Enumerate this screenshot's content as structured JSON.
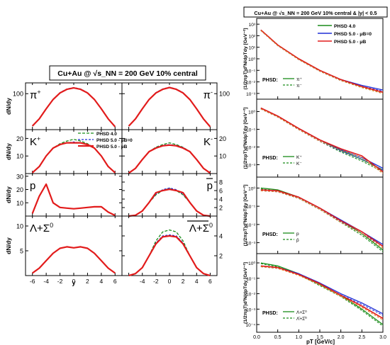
{
  "colors": {
    "green": "#1a8c1a",
    "blue": "#1f2fd6",
    "red": "#e21b1b",
    "orange": "#e8801e"
  },
  "left": {
    "title": "Cu+Au @ √s_NN = 200 GeV 10% central",
    "xlabel": "y",
    "ylabel": "dN/dy",
    "xticks": [
      "-6",
      "-4",
      "-2",
      "0",
      "2",
      "4",
      "6"
    ],
    "legend": [
      "PHSD 4.0",
      "PHSD 5.0 - μB=0",
      "PHSD 5.0 - μB"
    ],
    "panels": [
      {
        "label": "π+",
        "label_main": "π",
        "label_sup": "+",
        "side": "L",
        "ymax": 130,
        "yticks": [
          "100"
        ]
      },
      {
        "label": "π-",
        "label_main": "π",
        "label_sup": "-",
        "side": "R",
        "ymax": 130,
        "yticks": [
          "100"
        ]
      },
      {
        "label": "K+",
        "label_main": "K",
        "label_sup": "+",
        "side": "L",
        "ymax": 25,
        "yticks": [
          "10",
          "20"
        ]
      },
      {
        "label": "K-",
        "label_main": "K",
        "label_sup": "-",
        "side": "R",
        "ymax": 25,
        "yticks": [
          "10",
          "20"
        ]
      },
      {
        "label": "p",
        "label_main": "p",
        "label_sup": "",
        "side": "L",
        "ymax": 32,
        "yticks": [
          "10",
          "20",
          "30"
        ]
      },
      {
        "label": "p̄",
        "label_main": "p",
        "label_sup": "",
        "side": "R",
        "ymax": 10,
        "yticks": [
          "2",
          "4",
          "6",
          "8"
        ]
      },
      {
        "label": "Λ+Σ0",
        "label_main": "Λ+Σ",
        "label_sup": "0",
        "side": "L",
        "ymax": 12,
        "yticks": [
          "5",
          "10"
        ]
      },
      {
        "label": "Λ̄+Σ̄0",
        "label_main": "Λ+Σ",
        "label_sup": "0",
        "side": "R",
        "ymax": 6,
        "yticks": [
          "2",
          "4"
        ]
      }
    ]
  },
  "right": {
    "title": "Cu+Au @ √s_NN = 200 GeV 10% central & |y| < 0.5",
    "xlabel": "pT [GeV/c]",
    "ylabel": "(1/2πpT)d²N/dpTdy [GeV⁻²]",
    "xticks": [
      "0.0",
      "0.5",
      "1.0",
      "1.5",
      "2.0",
      "2.5",
      "3.0"
    ],
    "legend": [
      "PHSD 4.0",
      "PHSD 5.0 - μB=0",
      "PHSD 5.0 - μB"
    ],
    "panels": [
      {
        "yticks": [
          "10³",
          "10²",
          "10¹",
          "10⁰",
          "10⁻¹",
          "10⁻²",
          "10⁻³"
        ],
        "legend_title": "PHSD:",
        "legend_items": [
          "π⁺",
          "π⁻"
        ]
      },
      {
        "yticks": [
          "10⁰",
          "10⁻¹",
          "10⁻²",
          "10⁻³"
        ],
        "legend_title": "PHSD:",
        "legend_items": [
          "K⁺",
          "K⁻"
        ]
      },
      {
        "yticks": [
          "10⁰",
          "10⁻¹",
          "10⁻²",
          "10⁻³"
        ],
        "legend_title": "PHSD:",
        "legend_items": [
          "p",
          "p̄"
        ]
      },
      {
        "yticks": [
          "10⁰",
          "10⁻¹",
          "10⁻²",
          "10⁻³",
          "10⁻⁴"
        ],
        "legend_title": "PHSD:",
        "legend_items": [
          "Λ+Σ⁰",
          "Λ̄+Σ̄⁰"
        ]
      }
    ]
  },
  "chart_data": [
    {
      "type": "line",
      "title": "Cu+Au @ √s_NN = 200 GeV 10% central",
      "xlabel": "y",
      "ylabel": "dN/dy",
      "xlim": [
        -7,
        7
      ],
      "x": [
        -6,
        -5,
        -4,
        -3,
        -2,
        -1,
        0,
        1,
        2,
        3,
        4,
        5,
        6
      ],
      "panels": [
        {
          "label": "π+",
          "ylim": [
            0,
            130
          ],
          "series": [
            {
              "name": "PHSD 4.0",
              "values": [
                10,
                30,
                58,
                84,
                102,
                112,
                116,
                112,
                102,
                84,
                58,
                30,
                8
              ]
            },
            {
              "name": "PHSD 5.0 - μB=0",
              "values": [
                10,
                30,
                58,
                84,
                103,
                113,
                117,
                113,
                103,
                84,
                58,
                30,
                8
              ]
            },
            {
              "name": "PHSD 5.0 - μB",
              "values": [
                10,
                30,
                58,
                84,
                102,
                112,
                116,
                112,
                102,
                84,
                58,
                30,
                8
              ]
            }
          ]
        },
        {
          "label": "π-",
          "ylim": [
            0,
            130
          ],
          "series": [
            {
              "name": "PHSD 4.0",
              "values": [
                10,
                30,
                58,
                84,
                102,
                112,
                117,
                112,
                102,
                84,
                58,
                30,
                8
              ]
            },
            {
              "name": "PHSD 5.0 - μB=0",
              "values": [
                10,
                30,
                58,
                84,
                103,
                113,
                118,
                113,
                103,
                84,
                58,
                30,
                8
              ]
            },
            {
              "name": "PHSD 5.0 - μB",
              "values": [
                10,
                30,
                58,
                84,
                102,
                112,
                117,
                112,
                102,
                84,
                58,
                30,
                8
              ]
            }
          ]
        },
        {
          "label": "K+",
          "ylim": [
            0,
            25
          ],
          "series": [
            {
              "name": "PHSD 4.0",
              "values": [
                0.5,
                4,
                10,
                14.5,
                17,
                18.5,
                19.5,
                18.5,
                17,
                14.5,
                10,
                4,
                0.5
              ]
            },
            {
              "name": "PHSD 5.0 - μB=0",
              "values": [
                0.5,
                4,
                10,
                14.5,
                16.5,
                17.5,
                18,
                17.5,
                16.5,
                14.5,
                10,
                4,
                0.5
              ]
            },
            {
              "name": "PHSD 5.0 - μB",
              "values": [
                0.5,
                4,
                10,
                14.5,
                16.5,
                17.5,
                17.5,
                17.5,
                16.5,
                14.5,
                10,
                4,
                0.5
              ]
            }
          ]
        },
        {
          "label": "K-",
          "ylim": [
            0,
            25
          ],
          "series": [
            {
              "name": "PHSD 4.0",
              "values": [
                0.3,
                3,
                8,
                12.5,
                15,
                16.5,
                17.5,
                16.5,
                15,
                12.5,
                8,
                3,
                0.3
              ]
            },
            {
              "name": "PHSD 5.0 - μB=0",
              "values": [
                0.3,
                3,
                8,
                12.5,
                14.8,
                16,
                16.5,
                16,
                14.8,
                12.5,
                8,
                3,
                0.3
              ]
            },
            {
              "name": "PHSD 5.0 - μB",
              "values": [
                0.3,
                3,
                8,
                12.5,
                14.5,
                15.8,
                16.2,
                15.8,
                14.5,
                12.5,
                8,
                3,
                0.3
              ]
            }
          ]
        },
        {
          "label": "p",
          "ylim": [
            0,
            32
          ],
          "series": [
            {
              "name": "PHSD 4.0",
              "values": [
                2,
                15,
                24,
                10,
                6.5,
                6,
                5.5,
                6,
                6.5,
                7,
                7,
                3,
                0.5
              ]
            },
            {
              "name": "PHSD 5.0 - μB=0",
              "values": [
                2,
                15,
                24,
                10,
                6.5,
                6,
                5.5,
                6,
                6.5,
                7,
                7,
                3,
                0.5
              ]
            },
            {
              "name": "PHSD 5.0 - μB",
              "values": [
                2,
                15,
                24,
                10,
                6.5,
                6,
                5.5,
                6,
                6.5,
                7,
                7,
                3,
                0.5
              ]
            }
          ]
        },
        {
          "label": "p̄",
          "ylim": [
            0,
            10
          ],
          "series": [
            {
              "name": "PHSD 4.0",
              "values": [
                0,
                0.2,
                1.2,
                3.2,
                5,
                6,
                6.5,
                6,
                5,
                3.2,
                1.2,
                0.2,
                0
              ]
            },
            {
              "name": "PHSD 5.0 - μB=0",
              "values": [
                0,
                0.2,
                1.2,
                3.2,
                5.2,
                6.2,
                6.6,
                6.2,
                5.2,
                3.2,
                1.2,
                0.2,
                0
              ]
            },
            {
              "name": "PHSD 5.0 - μB",
              "values": [
                0,
                0.2,
                1.2,
                3.2,
                5.5,
                6,
                6.3,
                6,
                5.5,
                3.2,
                1.2,
                0.2,
                0
              ]
            }
          ]
        },
        {
          "label": "Λ+Σ0",
          "ylim": [
            0,
            12
          ],
          "series": [
            {
              "name": "PHSD 4.0",
              "values": [
                0.5,
                1.5,
                3,
                4.5,
                5.5,
                5.8,
                5.6,
                5.8,
                5.5,
                4.5,
                3,
                1.5,
                0.5
              ]
            },
            {
              "name": "PHSD 5.0 - μB=0",
              "values": [
                0.5,
                1.5,
                3,
                4.5,
                5.5,
                5.8,
                5.6,
                5.8,
                5.5,
                4.5,
                3,
                1.5,
                0.5
              ]
            },
            {
              "name": "PHSD 5.0 - μB",
              "values": [
                0.5,
                1.5,
                3,
                4.5,
                5.5,
                5.8,
                5.6,
                5.8,
                5.5,
                4.5,
                3,
                1.5,
                0.5
              ]
            }
          ]
        },
        {
          "label": "Λ̄+Σ̄0",
          "ylim": [
            0,
            6
          ],
          "series": [
            {
              "name": "PHSD 4.0",
              "values": [
                0,
                0.2,
                0.8,
                2,
                3.5,
                4.4,
                4.6,
                4.4,
                3.5,
                2,
                0.8,
                0.2,
                0
              ]
            },
            {
              "name": "PHSD 5.0 - μB=0",
              "values": [
                0,
                0.2,
                0.8,
                2,
                3.3,
                4,
                4.1,
                4,
                3.3,
                2,
                0.8,
                0.2,
                0
              ]
            },
            {
              "name": "PHSD 5.0 - μB",
              "values": [
                0,
                0.2,
                0.8,
                2,
                3.2,
                3.9,
                4,
                3.9,
                3.2,
                2,
                0.8,
                0.2,
                0
              ]
            }
          ]
        }
      ]
    },
    {
      "type": "line",
      "title": "Cu+Au @ √s_NN = 200 GeV 10% central & |y| < 0.5",
      "xlabel": "pT [GeV/c]",
      "ylabel": "(1/2πpT)d²N/dpTdy [GeV⁻²]",
      "xlim": [
        0,
        3
      ],
      "log_y": true,
      "x": [
        0.1,
        0.5,
        1,
        1.5,
        2,
        2.5,
        3
      ],
      "panels": [
        {
          "label": "π",
          "ylim_log10": [
            -3.5,
            3.5
          ],
          "series": [
            {
              "name": "PHSD 4.0",
              "values_log10": [
                2.5,
                1.2,
                0,
                -1,
                -1.8,
                -2.4,
                -2.9
              ]
            },
            {
              "name": "PHSD 5.0 - μB=0",
              "values_log10": [
                2.5,
                1.2,
                0,
                -1,
                -1.8,
                -2.3,
                -2.7
              ]
            },
            {
              "name": "PHSD 5.0 - μB",
              "values_log10": [
                2.5,
                1.2,
                0,
                -1,
                -1.8,
                -2.4,
                -2.9
              ]
            }
          ]
        },
        {
          "label": "K",
          "ylim_log10": [
            -3.7,
            0.7
          ],
          "series": [
            {
              "name": "PHSD 4.0",
              "values_log10": [
                0.2,
                -0.25,
                -0.95,
                -1.6,
                -2.2,
                -2.7,
                -3.3
              ]
            },
            {
              "name": "PHSD 5.0 - μB=0",
              "values_log10": [
                0.2,
                -0.25,
                -0.95,
                -1.6,
                -2.15,
                -2.6,
                -3.2
              ]
            },
            {
              "name": "PHSD 5.0 - μB",
              "values_log10": [
                0.2,
                -0.25,
                -0.95,
                -1.6,
                -2.1,
                -2.5,
                -3.4
              ]
            }
          ]
        },
        {
          "label": "p",
          "ylim_log10": [
            -3.6,
            0.6
          ],
          "series": [
            {
              "name": "PHSD 4.0",
              "values_log10": [
                0,
                -0.1,
                -0.5,
                -1.1,
                -1.8,
                -2.5,
                -3.4
              ]
            },
            {
              "name": "PHSD 5.0 - μB=0",
              "values_log10": [
                -0.1,
                -0.15,
                -0.5,
                -1.1,
                -1.75,
                -2.4,
                -3.1
              ]
            },
            {
              "name": "PHSD 5.0 - μB",
              "values_log10": [
                -0.1,
                -0.15,
                -0.5,
                -1.1,
                -1.8,
                -2.4,
                -3.2
              ]
            }
          ]
        },
        {
          "label": "Λ+Σ0",
          "ylim_log10": [
            -4.5,
            0.6
          ],
          "series": [
            {
              "name": "PHSD 4.0",
              "values_log10": [
                0,
                -0.2,
                -0.7,
                -1.4,
                -2.1,
                -3,
                -4
              ]
            },
            {
              "name": "PHSD 5.0 - μB=0",
              "values_log10": [
                -0.2,
                -0.3,
                -0.7,
                -1.3,
                -2,
                -2.6,
                -3.3
              ]
            },
            {
              "name": "PHSD 5.0 - μB",
              "values_log10": [
                -0.2,
                -0.3,
                -0.75,
                -1.35,
                -2.1,
                -2.8,
                -3.6
              ]
            }
          ]
        }
      ]
    }
  ]
}
